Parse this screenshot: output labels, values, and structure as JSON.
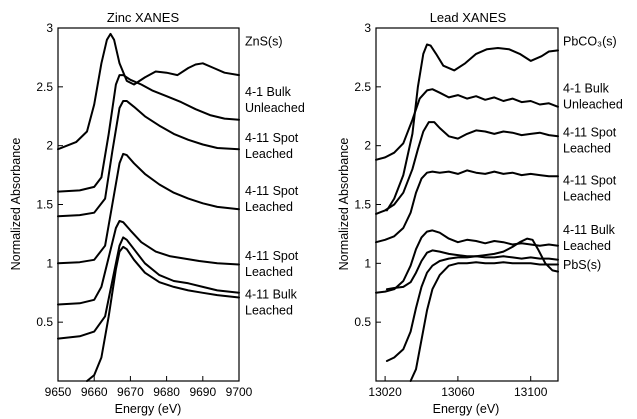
{
  "chart_data": [
    {
      "type": "line",
      "title": "Zinc XANES",
      "xlabel": "Energy (eV)",
      "ylabel": "Normalized Absorbance",
      "xlim": [
        9650,
        9700
      ],
      "ylim": [
        0,
        3
      ],
      "xticks": [
        9650,
        9660,
        9670,
        9680,
        9690,
        9700
      ],
      "yticks": [
        0.5,
        1,
        1.5,
        2,
        2.5,
        3
      ],
      "grid": false,
      "series": [
        {
          "name": "ZnS(s)",
          "label_lines": [
            "ZnS(s)"
          ],
          "label_y": 2.85,
          "x": [
            9650,
            9655,
            9658,
            9660,
            9662,
            9663.5,
            9664.5,
            9665.5,
            9667,
            9669,
            9671,
            9674,
            9677,
            9680,
            9683,
            9686,
            9688,
            9690,
            9693,
            9696,
            9700
          ],
          "y": [
            1.97,
            2.03,
            2.12,
            2.35,
            2.7,
            2.9,
            2.95,
            2.9,
            2.7,
            2.55,
            2.52,
            2.58,
            2.63,
            2.62,
            2.6,
            2.66,
            2.69,
            2.7,
            2.66,
            2.62,
            2.6
          ]
        },
        {
          "name": "4-1 Bulk Unleached",
          "label_lines": [
            "4-1 Bulk",
            "Unleached"
          ],
          "label_y": 2.42,
          "x": [
            9650,
            9656,
            9660,
            9662,
            9664,
            9666,
            9667,
            9668,
            9670,
            9673,
            9676,
            9680,
            9684,
            9688,
            9692,
            9696,
            9700
          ],
          "y": [
            1.61,
            1.62,
            1.65,
            1.73,
            2.1,
            2.52,
            2.6,
            2.6,
            2.56,
            2.52,
            2.47,
            2.42,
            2.37,
            2.31,
            2.26,
            2.23,
            2.22
          ]
        },
        {
          "name": "4-11 Spot Leached",
          "label_lines": [
            "4-11 Spot",
            "Leached"
          ],
          "label_y": 2.03,
          "x": [
            9650,
            9656,
            9660,
            9663,
            9665,
            9667,
            9668,
            9669,
            9671,
            9674,
            9678,
            9682,
            9686,
            9690,
            9694,
            9700
          ],
          "y": [
            1.4,
            1.41,
            1.43,
            1.55,
            1.95,
            2.32,
            2.38,
            2.38,
            2.33,
            2.25,
            2.17,
            2.1,
            2.05,
            2.01,
            1.98,
            1.97
          ]
        },
        {
          "name": "4-11 Spot Leached",
          "label_lines": [
            "4-11 Spot",
            "Leached"
          ],
          "label_y": 1.58,
          "x": [
            9650,
            9656,
            9660,
            9663,
            9665,
            9667,
            9668,
            9669,
            9671,
            9674,
            9678,
            9682,
            9686,
            9690,
            9694,
            9700
          ],
          "y": [
            1.0,
            1.01,
            1.03,
            1.15,
            1.5,
            1.85,
            1.93,
            1.92,
            1.85,
            1.76,
            1.67,
            1.6,
            1.55,
            1.51,
            1.48,
            1.46
          ]
        },
        {
          "name": "4-11 Spot Leached",
          "label_lines": [
            "4-11 Spot",
            "Leached"
          ],
          "label_y": 1.03,
          "x": [
            9650,
            9656,
            9660,
            9662,
            9664,
            9666,
            9667,
            9668,
            9670,
            9673,
            9677,
            9681,
            9685,
            9689,
            9694,
            9700
          ],
          "y": [
            0.65,
            0.66,
            0.69,
            0.8,
            1.05,
            1.3,
            1.36,
            1.35,
            1.28,
            1.18,
            1.1,
            1.06,
            1.04,
            1.02,
            1.0,
            0.99
          ]
        },
        {
          "name": "4-11 Bulk Leached",
          "label_lines": [
            "4-11 Bulk",
            "Leached"
          ],
          "label_y": 0.7,
          "x": [
            9650,
            9656,
            9660,
            9663,
            9665,
            9667,
            9668,
            9669,
            9671,
            9674,
            9678,
            9682,
            9686,
            9690,
            9694,
            9700
          ],
          "y": [
            0.36,
            0.38,
            0.42,
            0.55,
            0.85,
            1.15,
            1.22,
            1.2,
            1.12,
            1.0,
            0.9,
            0.85,
            0.83,
            0.8,
            0.77,
            0.75
          ]
        },
        {
          "name": "",
          "label_lines": [],
          "label_y": null,
          "x": [
            9658,
            9660,
            9662,
            9664,
            9666,
            9667,
            9668,
            9669,
            9671,
            9674,
            9678,
            9682,
            9686,
            9690,
            9694,
            9700
          ],
          "y": [
            0.0,
            0.05,
            0.2,
            0.55,
            0.95,
            1.1,
            1.14,
            1.12,
            1.03,
            0.92,
            0.84,
            0.8,
            0.77,
            0.75,
            0.73,
            0.71
          ]
        }
      ]
    },
    {
      "type": "line",
      "title": "Lead XANES",
      "xlabel": "Energy (eV)",
      "ylabel": "Normalized Absorbance",
      "xlim": [
        13015,
        13115
      ],
      "ylim": [
        0,
        3
      ],
      "xticks": [
        13020,
        13060,
        13100
      ],
      "yticks": [
        0.5,
        1,
        1.5,
        2,
        2.5,
        3
      ],
      "grid": false,
      "series": [
        {
          "name": "PbCO3(s)",
          "label_lines": [
            "PbCO₃(s)"
          ],
          "label_y": 2.85,
          "x": [
            13021,
            13025,
            13030,
            13035,
            13038,
            13041,
            13043,
            13045,
            13048,
            13052,
            13058,
            13064,
            13070,
            13076,
            13082,
            13088,
            13094,
            13100,
            13106,
            13110,
            13115
          ],
          "y": [
            1.45,
            1.55,
            1.75,
            2.1,
            2.5,
            2.78,
            2.86,
            2.85,
            2.78,
            2.68,
            2.64,
            2.7,
            2.78,
            2.82,
            2.83,
            2.82,
            2.78,
            2.72,
            2.76,
            2.8,
            2.81
          ]
        },
        {
          "name": "4-1 Bulk Unleached",
          "label_lines": [
            "4-1 Bulk",
            "Unleached"
          ],
          "label_y": 2.45,
          "x": [
            13015,
            13020,
            13025,
            13030,
            13035,
            13039,
            13043,
            13046,
            13050,
            13055,
            13060,
            13065,
            13070,
            13075,
            13080,
            13085,
            13090,
            13095,
            13100,
            13105,
            13110,
            13115
          ],
          "y": [
            1.88,
            1.9,
            1.94,
            2.02,
            2.22,
            2.4,
            2.47,
            2.48,
            2.45,
            2.41,
            2.43,
            2.4,
            2.42,
            2.39,
            2.41,
            2.38,
            2.4,
            2.37,
            2.38,
            2.35,
            2.36,
            2.33
          ]
        },
        {
          "name": "4-11 Spot Leached",
          "label_lines": [
            "4-11 Spot",
            "Leached"
          ],
          "label_y": 2.08,
          "x": [
            13015,
            13020,
            13025,
            13030,
            13035,
            13038,
            13041,
            13044,
            13047,
            13050,
            13055,
            13060,
            13065,
            13070,
            13075,
            13080,
            13085,
            13090,
            13095,
            13100,
            13105,
            13110,
            13115
          ],
          "y": [
            1.42,
            1.45,
            1.5,
            1.6,
            1.8,
            1.97,
            2.12,
            2.2,
            2.2,
            2.15,
            2.08,
            2.06,
            2.1,
            2.13,
            2.12,
            2.1,
            2.12,
            2.11,
            2.09,
            2.1,
            2.11,
            2.09,
            2.08
          ]
        },
        {
          "name": "4-11 Spot Leached",
          "label_lines": [
            "4-11 Spot",
            "Leached"
          ],
          "label_y": 1.67,
          "x": [
            13015,
            13020,
            13025,
            13030,
            13034,
            13037,
            13040,
            13043,
            13046,
            13050,
            13055,
            13060,
            13065,
            13070,
            13075,
            13080,
            13085,
            13090,
            13095,
            13100,
            13105,
            13110,
            13115
          ],
          "y": [
            1.18,
            1.2,
            1.23,
            1.3,
            1.43,
            1.6,
            1.72,
            1.77,
            1.78,
            1.77,
            1.78,
            1.76,
            1.79,
            1.77,
            1.76,
            1.78,
            1.76,
            1.77,
            1.75,
            1.76,
            1.75,
            1.74,
            1.74
          ]
        },
        {
          "name": "4-11 Bulk Leached",
          "label_lines": [
            "4-11 Bulk",
            "Leached"
          ],
          "label_y": 1.25,
          "x": [
            13015,
            13020,
            13025,
            13030,
            13034,
            13037,
            13040,
            13043,
            13046,
            13050,
            13055,
            13060,
            13065,
            13070,
            13075,
            13080,
            13085,
            13090,
            13095,
            13100,
            13105,
            13110,
            13115
          ],
          "y": [
            0.75,
            0.76,
            0.78,
            0.85,
            0.98,
            1.12,
            1.22,
            1.27,
            1.28,
            1.26,
            1.21,
            1.18,
            1.2,
            1.19,
            1.17,
            1.19,
            1.18,
            1.16,
            1.17,
            1.16,
            1.15,
            1.16,
            1.15
          ]
        },
        {
          "name": "PbS(s)",
          "label_lines": [
            "PbS(s)"
          ],
          "label_y": 0.95,
          "x": [
            13021,
            13025,
            13030,
            13034,
            13037,
            13040,
            13043,
            13046,
            13050,
            13055,
            13060,
            13065,
            13070,
            13075,
            13080,
            13085,
            13090,
            13094,
            13098,
            13101,
            13104,
            13108,
            13112,
            13115
          ],
          "y": [
            0.78,
            0.79,
            0.8,
            0.84,
            0.92,
            1.02,
            1.09,
            1.11,
            1.1,
            1.08,
            1.07,
            1.06,
            1.06,
            1.07,
            1.08,
            1.1,
            1.14,
            1.18,
            1.21,
            1.2,
            1.12,
            1.0,
            0.94,
            0.93
          ]
        },
        {
          "name": "",
          "label_lines": [],
          "label_y": null,
          "x": [
            13021,
            13025,
            13030,
            13034,
            13037,
            13040,
            13043,
            13046,
            13050,
            13055,
            13060,
            13065,
            13070,
            13075,
            13080,
            13085,
            13090,
            13095,
            13100,
            13105,
            13110,
            13115
          ],
          "y": [
            0.17,
            0.2,
            0.27,
            0.42,
            0.62,
            0.8,
            0.92,
            0.98,
            1.02,
            1.04,
            1.05,
            1.05,
            1.06,
            1.05,
            1.05,
            1.06,
            1.05,
            1.04,
            1.05,
            1.04,
            1.04,
            1.03
          ]
        },
        {
          "name": "",
          "label_lines": [],
          "label_y": null,
          "x": [
            13034,
            13037,
            13040,
            13043,
            13046,
            13050,
            13055,
            13060,
            13065,
            13070,
            13075,
            13080,
            13085,
            13090,
            13095,
            13100,
            13105,
            13110,
            13115
          ],
          "y": [
            0.0,
            0.1,
            0.35,
            0.6,
            0.78,
            0.9,
            0.98,
            1.0,
            1.0,
            1.01,
            1.0,
            1.0,
            1.01,
            1.0,
            1.0,
            1.0,
            0.99,
            0.99,
            0.99
          ]
        }
      ]
    }
  ]
}
